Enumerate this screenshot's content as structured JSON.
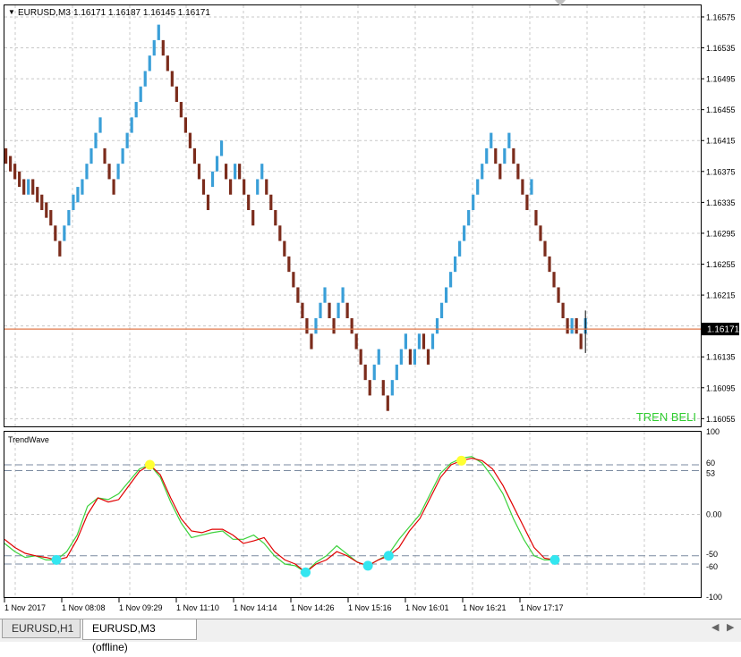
{
  "main_chart": {
    "symbol_label": "EURUSD,M3",
    "ohlc_label": "1.16171 1.16187 1.16145 1.16171",
    "price_ticks": [
      "1.16575",
      "1.16535",
      "1.16495",
      "1.16455",
      "1.16415",
      "1.16375",
      "1.16335",
      "1.16295",
      "1.16255",
      "1.16215",
      "1.16175",
      "1.16135",
      "1.16095",
      "1.16055"
    ],
    "current_price": "1.16171",
    "signal_text": "TREN BELI",
    "colors": {
      "up_brick": "#3a9fd8",
      "down_brick": "#7b2c1c",
      "price_line": "#e0784a",
      "price_box": "#000000",
      "signal_text": "#32cd32",
      "grid": "#c8c8c8"
    }
  },
  "indicator": {
    "name": "TrendWave",
    "level_ticks": [
      "100",
      "60",
      "53",
      "0.00",
      "-50",
      "-60",
      "-100"
    ],
    "colors": {
      "red_line": "#e00000",
      "green_line": "#3cd23c",
      "top_dot": "#ffff33",
      "bottom_dot": "#33e6f0",
      "level_line": "#7a8aa0"
    }
  },
  "time_axis": {
    "labels": [
      "1 Nov 2017",
      "1 Nov 08:08",
      "1 Nov 09:29",
      "1 Nov 11:10",
      "1 Nov 14:14",
      "1 Nov 14:26",
      "1 Nov 15:16",
      "1 Nov 16:01",
      "1 Nov 16:21",
      "1 Nov 17:17"
    ]
  },
  "tabs": [
    {
      "label": "EURUSD,H1",
      "active": false
    },
    {
      "label": "EURUSD,M3 (offline)",
      "active": true
    }
  ],
  "chart_data": [
    {
      "type": "bar",
      "chart_kind": "renko",
      "brick_size": 0.0001,
      "ylim": [
        1.16045,
        1.1659
      ],
      "bricks": [
        [
          1.16405,
          1.16385
        ],
        [
          1.16395,
          1.16375
        ],
        [
          1.16385,
          1.16365
        ],
        [
          1.16375,
          1.16355
        ],
        [
          1.16365,
          1.16345
        ],
        [
          1.16345,
          1.16365
        ],
        [
          1.16365,
          1.16345
        ],
        [
          1.16355,
          1.16335
        ],
        [
          1.16345,
          1.16325
        ],
        [
          1.16335,
          1.16315
        ],
        [
          1.16325,
          1.16305
        ],
        [
          1.16305,
          1.16285
        ],
        [
          1.16285,
          1.16265
        ],
        [
          1.16285,
          1.16305
        ],
        [
          1.16305,
          1.16325
        ],
        [
          1.16325,
          1.16345
        ],
        [
          1.16335,
          1.16355
        ],
        [
          1.16345,
          1.16365
        ],
        [
          1.16365,
          1.16385
        ],
        [
          1.16385,
          1.16405
        ],
        [
          1.16405,
          1.16425
        ],
        [
          1.16425,
          1.16445
        ],
        [
          1.16405,
          1.16385
        ],
        [
          1.16385,
          1.16365
        ],
        [
          1.16365,
          1.16345
        ],
        [
          1.16365,
          1.16385
        ],
        [
          1.16385,
          1.16405
        ],
        [
          1.16405,
          1.16425
        ],
        [
          1.16425,
          1.16445
        ],
        [
          1.16445,
          1.16465
        ],
        [
          1.16465,
          1.16485
        ],
        [
          1.16485,
          1.16505
        ],
        [
          1.16505,
          1.16525
        ],
        [
          1.16525,
          1.16545
        ],
        [
          1.16545,
          1.16565
        ],
        [
          1.16545,
          1.16525
        ],
        [
          1.16525,
          1.16505
        ],
        [
          1.16505,
          1.16485
        ],
        [
          1.16485,
          1.16465
        ],
        [
          1.16465,
          1.16445
        ],
        [
          1.16445,
          1.16425
        ],
        [
          1.16425,
          1.16405
        ],
        [
          1.16405,
          1.16385
        ],
        [
          1.16385,
          1.16365
        ],
        [
          1.16365,
          1.16345
        ],
        [
          1.16345,
          1.16325
        ],
        [
          1.16355,
          1.16375
        ],
        [
          1.16375,
          1.16395
        ],
        [
          1.16395,
          1.16415
        ],
        [
          1.16385,
          1.16365
        ],
        [
          1.16365,
          1.16345
        ],
        [
          1.16365,
          1.16385
        ],
        [
          1.16385,
          1.16365
        ],
        [
          1.16365,
          1.16345
        ],
        [
          1.16345,
          1.16325
        ],
        [
          1.16325,
          1.16305
        ],
        [
          1.16345,
          1.16365
        ],
        [
          1.16365,
          1.16385
        ],
        [
          1.16365,
          1.16345
        ],
        [
          1.16345,
          1.16325
        ],
        [
          1.16325,
          1.16305
        ],
        [
          1.16305,
          1.16285
        ],
        [
          1.16285,
          1.16265
        ],
        [
          1.16265,
          1.16245
        ],
        [
          1.16245,
          1.16225
        ],
        [
          1.16225,
          1.16205
        ],
        [
          1.16205,
          1.16185
        ],
        [
          1.16185,
          1.16165
        ],
        [
          1.16165,
          1.16145
        ],
        [
          1.16165,
          1.16185
        ],
        [
          1.16185,
          1.16205
        ],
        [
          1.16205,
          1.16225
        ],
        [
          1.16205,
          1.16185
        ],
        [
          1.16185,
          1.16165
        ],
        [
          1.16185,
          1.16205
        ],
        [
          1.16205,
          1.16225
        ],
        [
          1.16205,
          1.16185
        ],
        [
          1.16185,
          1.16165
        ],
        [
          1.16165,
          1.16145
        ],
        [
          1.16145,
          1.16125
        ],
        [
          1.16125,
          1.16105
        ],
        [
          1.16105,
          1.16085
        ],
        [
          1.16105,
          1.16125
        ],
        [
          1.16125,
          1.16145
        ],
        [
          1.16105,
          1.16085
        ],
        [
          1.16085,
          1.16065
        ],
        [
          1.16085,
          1.16105
        ],
        [
          1.16105,
          1.16125
        ],
        [
          1.16125,
          1.16145
        ],
        [
          1.16145,
          1.16165
        ],
        [
          1.16145,
          1.16125
        ],
        [
          1.16125,
          1.16145
        ],
        [
          1.16145,
          1.16165
        ],
        [
          1.16165,
          1.16145
        ],
        [
          1.16145,
          1.16125
        ],
        [
          1.16145,
          1.16165
        ],
        [
          1.16165,
          1.16185
        ],
        [
          1.16185,
          1.16205
        ],
        [
          1.16205,
          1.16225
        ],
        [
          1.16225,
          1.16245
        ],
        [
          1.16245,
          1.16265
        ],
        [
          1.16265,
          1.16285
        ],
        [
          1.16285,
          1.16305
        ],
        [
          1.16305,
          1.16325
        ],
        [
          1.16325,
          1.16345
        ],
        [
          1.16345,
          1.16365
        ],
        [
          1.16365,
          1.16385
        ],
        [
          1.16385,
          1.16405
        ],
        [
          1.16405,
          1.16425
        ],
        [
          1.16405,
          1.16385
        ],
        [
          1.16385,
          1.16365
        ],
        [
          1.16385,
          1.16405
        ],
        [
          1.16405,
          1.16425
        ],
        [
          1.16405,
          1.16385
        ],
        [
          1.16385,
          1.16365
        ],
        [
          1.16365,
          1.16345
        ],
        [
          1.16345,
          1.16325
        ],
        [
          1.16345,
          1.16365
        ],
        [
          1.16325,
          1.16305
        ],
        [
          1.16305,
          1.16285
        ],
        [
          1.16285,
          1.16265
        ],
        [
          1.16265,
          1.16245
        ],
        [
          1.16245,
          1.16225
        ],
        [
          1.16225,
          1.16205
        ],
        [
          1.16205,
          1.16185
        ],
        [
          1.16185,
          1.16165
        ],
        [
          1.16165,
          1.16185
        ],
        [
          1.16185,
          1.16165
        ],
        [
          1.16165,
          1.16145
        ],
        [
          1.16165,
          1.16185
        ]
      ]
    },
    {
      "type": "line",
      "title": "TrendWave",
      "ylim": [
        -100,
        100
      ],
      "levels": [
        60,
        53,
        -50,
        -60
      ],
      "series": [
        {
          "values": [
            -30,
            -40,
            -47,
            -50,
            -52,
            -55,
            -52,
            -30,
            0,
            20,
            15,
            18,
            35,
            52,
            60,
            48,
            20,
            -5,
            -20,
            -22,
            -18,
            -18,
            -25,
            -35,
            -32,
            -28,
            -45,
            -55,
            -60,
            -70,
            -60,
            -55,
            -45,
            -50,
            -58,
            -62,
            -55,
            -50,
            -40,
            -20,
            -5,
            20,
            45,
            60,
            65,
            68,
            65,
            55,
            35,
            10,
            -15,
            -40,
            -53,
            -55
          ]
        },
        {
          "values": [
            -35,
            -45,
            -52,
            -50,
            -55,
            -55,
            -45,
            -25,
            10,
            20,
            18,
            25,
            40,
            55,
            60,
            45,
            15,
            -10,
            -28,
            -25,
            -22,
            -20,
            -30,
            -30,
            -25,
            -35,
            -50,
            -60,
            -62,
            -70,
            -58,
            -50,
            -38,
            -48,
            -58,
            -62,
            -55,
            -48,
            -30,
            -15,
            0,
            25,
            50,
            62,
            68,
            70,
            62,
            45,
            25,
            -5,
            -30,
            -50,
            -55,
            -55
          ]
        }
      ]
    }
  ]
}
